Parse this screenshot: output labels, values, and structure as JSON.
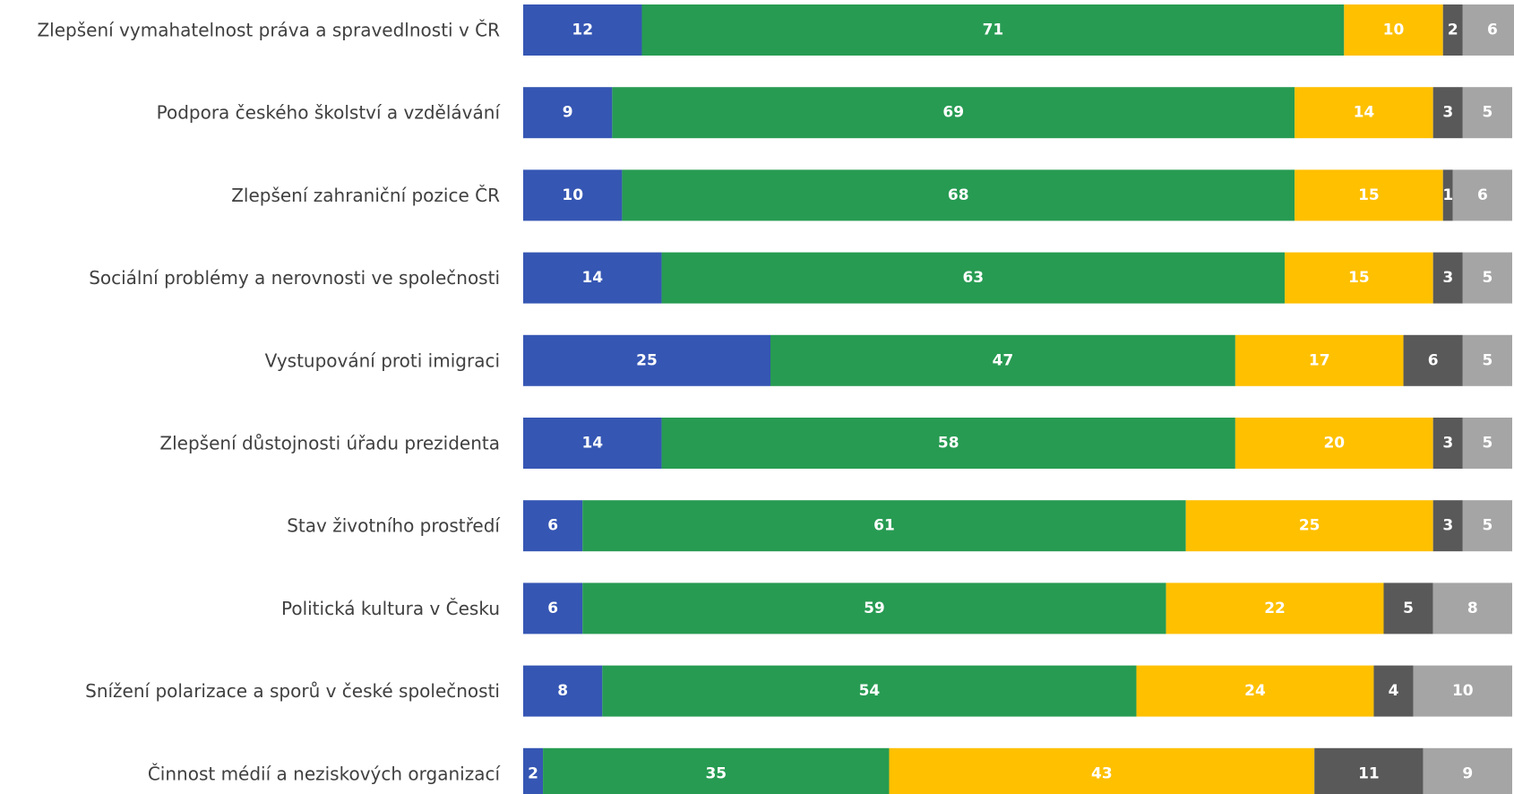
{
  "chart_data": {
    "type": "bar",
    "orientation": "horizontal",
    "stacked": true,
    "categories": [
      "Zlepšení vymahatelnost práva a spravedlnosti v ČR",
      "Podpora českého školství a vzdělávání",
      "Zlepšení zahraniční pozice ČR",
      "Sociální problémy a nerovnosti ve společnosti",
      "Vystupování proti imigraci",
      "Zlepšení důstojnosti úřadu prezidenta",
      "Stav životního prostředí",
      "Politická kultura v Česku",
      "Snížení polarizace a sporů v české společnosti",
      "Činnost médií a neziskových organizací"
    ],
    "series": [
      {
        "color": "#3556B3",
        "values": [
          12,
          9,
          10,
          14,
          25,
          14,
          6,
          6,
          8,
          2
        ]
      },
      {
        "color": "#279B52",
        "values": [
          71,
          69,
          68,
          63,
          47,
          58,
          61,
          59,
          54,
          35
        ]
      },
      {
        "color": "#FFC000",
        "values": [
          10,
          14,
          15,
          15,
          17,
          20,
          25,
          22,
          24,
          43
        ]
      },
      {
        "color": "#595959",
        "values": [
          2,
          3,
          1,
          3,
          6,
          3,
          3,
          5,
          4,
          11
        ]
      },
      {
        "color": "#A5A5A5",
        "values": [
          6,
          5,
          6,
          5,
          5,
          5,
          5,
          8,
          10,
          9
        ]
      }
    ],
    "xlim": [
      0,
      100
    ],
    "grid": false,
    "legend": "none"
  }
}
